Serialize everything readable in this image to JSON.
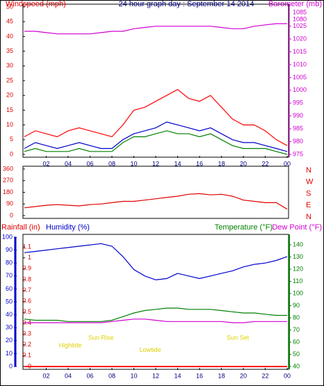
{
  "chart_data": [
    {
      "type": "line",
      "title": "24 hour graph day : September 14 2014",
      "y_label": "Windspeed (mph)",
      "y2_label": "Barometer (mb)",
      "y_color": "#e00000",
      "y2_color": "#d000d0",
      "x": [
        0,
        1,
        2,
        3,
        4,
        5,
        6,
        7,
        8,
        9,
        10,
        11,
        12,
        13,
        14,
        15,
        16,
        17,
        18,
        19,
        20,
        21,
        22,
        23,
        24
      ],
      "xlim": [
        0,
        24
      ],
      "xticks": [
        {
          "value": 2,
          "label": "02"
        },
        {
          "value": 4,
          "label": "04"
        },
        {
          "value": 6,
          "label": "06"
        },
        {
          "value": 8,
          "label": "08"
        },
        10,
        12,
        14,
        16,
        18,
        20,
        22,
        {
          "value": 24,
          "label": "00"
        }
      ],
      "ylim": [
        0,
        50
      ],
      "yticks": [
        0,
        5,
        10,
        15,
        20,
        25,
        30,
        35,
        40,
        45,
        50
      ],
      "y2lim": [
        975,
        1032.5
      ],
      "y2ticks": [
        975,
        980,
        985,
        990,
        995,
        1000,
        1005,
        1010,
        1015,
        1020,
        1025
      ],
      "y2_break_labels": [
        "1080",
        "1085"
      ],
      "series": [
        {
          "color": "#ff0000",
          "values": [
            6,
            8,
            7,
            6,
            8,
            9,
            8,
            7,
            6,
            10,
            15,
            16,
            18,
            20,
            22,
            19,
            18,
            20,
            16,
            12,
            10,
            10,
            8,
            5,
            3
          ]
        },
        {
          "color": "#008000",
          "values": [
            1,
            2,
            1,
            1,
            1,
            2,
            1,
            1,
            1,
            4,
            6,
            6,
            7,
            8,
            7,
            7,
            6,
            7,
            5,
            3,
            2,
            2,
            2,
            1,
            0
          ]
        },
        {
          "color": "#0000cc",
          "values": [
            2,
            4,
            3,
            2,
            3,
            4,
            3,
            2,
            2,
            5,
            7,
            8,
            9,
            11,
            10,
            9,
            8,
            9,
            7,
            5,
            4,
            4,
            3,
            2,
            1
          ]
        },
        {
          "color": "#d000d0",
          "axis": "y2",
          "values": [
            1023,
            1023,
            1022.5,
            1022,
            1022,
            1022,
            1022,
            1022.5,
            1023,
            1023,
            1024,
            1024.5,
            1025,
            1025,
            1025,
            1025,
            1025,
            1025,
            1024.5,
            1024,
            1024,
            1025,
            1025.5,
            1026,
            1026
          ]
        }
      ]
    },
    {
      "type": "line",
      "y_color": "#e00000",
      "x": [
        0,
        1,
        2,
        3,
        4,
        5,
        6,
        7,
        8,
        9,
        10,
        11,
        12,
        13,
        14,
        15,
        16,
        17,
        18,
        19,
        20,
        21,
        22,
        23,
        24
      ],
      "xlim": [
        0,
        24
      ],
      "ylim": [
        0,
        360
      ],
      "yticks": [
        0,
        90,
        180,
        270,
        360
      ],
      "direction_labels": [
        "N",
        "W",
        "S",
        "E",
        "N"
      ],
      "series": [
        {
          "color": "#e00000",
          "values": [
            60,
            70,
            80,
            85,
            80,
            75,
            85,
            90,
            100,
            110,
            110,
            120,
            130,
            140,
            150,
            165,
            170,
            160,
            165,
            150,
            120,
            110,
            100,
            100,
            50
          ]
        }
      ]
    },
    {
      "type": "line",
      "y_label": "Rainfall (in)",
      "y3_label": "Humidity (%)",
      "y2_label": "Temperature (°F)",
      "y4_label": "Dew Point (°F)",
      "y_color": "#e00000",
      "y2_color": "#008000",
      "y3_color": "#0000cc",
      "y4_color": "#d000d0",
      "x": [
        0,
        1,
        2,
        3,
        4,
        5,
        6,
        7,
        8,
        9,
        10,
        11,
        12,
        13,
        14,
        15,
        16,
        17,
        18,
        19,
        20,
        21,
        22,
        23,
        24
      ],
      "xlim": [
        0,
        24
      ],
      "xticks": [
        {
          "value": 2,
          "label": "02"
        },
        {
          "value": 4,
          "label": "04"
        },
        {
          "value": 6,
          "label": "06"
        },
        {
          "value": 8,
          "label": "08"
        },
        10,
        12,
        14,
        16,
        18,
        20,
        22,
        {
          "value": 24,
          "label": "00"
        }
      ],
      "ylim": [
        0,
        1.19
      ],
      "yticks": [
        0,
        0.1,
        0.2,
        0.3,
        0.4,
        0.5,
        0.6,
        0.7,
        0.8,
        0.9,
        1,
        1.1
      ],
      "y3lim": [
        0,
        100
      ],
      "y3ticks": [
        0,
        10,
        20,
        30,
        40,
        50,
        60,
        70,
        80,
        90,
        100
      ],
      "y2lim": [
        40,
        146.3
      ],
      "y2ticks": [
        40,
        50,
        60,
        70,
        80,
        90,
        100,
        110,
        120,
        130,
        140
      ],
      "annotations": [
        {
          "text": "Hightide",
          "x": 4.2,
          "y": 0.19
        },
        {
          "text": "Sun Rise",
          "x": 7,
          "y": 0.26
        },
        {
          "text": "Lowtide",
          "x": 11.5,
          "y": 0.15
        },
        {
          "text": "Sun Set",
          "x": 19.5,
          "y": 0.26
        }
      ],
      "series": [
        {
          "color": "#ff0000",
          "values": [
            0,
            0,
            0,
            0,
            0,
            0,
            0,
            0,
            0,
            0,
            0,
            0,
            0,
            0,
            0,
            0,
            0,
            0,
            0,
            0,
            0,
            0,
            0,
            0,
            0
          ]
        },
        {
          "color": "#0000cc",
          "axis": "y3",
          "values": [
            88,
            89,
            90,
            91,
            92,
            93,
            94,
            95,
            93,
            85,
            75,
            70,
            67,
            68,
            72,
            70,
            68,
            70,
            72,
            74,
            77,
            79,
            80,
            82,
            85
          ]
        },
        {
          "color": "#008000",
          "axis": "y2",
          "values": [
            79,
            78,
            78,
            78,
            77,
            77,
            77,
            77,
            78,
            81,
            84,
            86,
            87,
            88,
            88,
            87,
            87,
            87,
            86,
            85,
            84,
            84,
            83,
            82,
            82
          ]
        },
        {
          "color": "#d000d0",
          "axis": "y2",
          "values": [
            76,
            76,
            76,
            76,
            76,
            76,
            76,
            76,
            77,
            78,
            79,
            79,
            78,
            77,
            77,
            77,
            77,
            77,
            77,
            76,
            76,
            77,
            77,
            77,
            77
          ]
        }
      ]
    }
  ]
}
